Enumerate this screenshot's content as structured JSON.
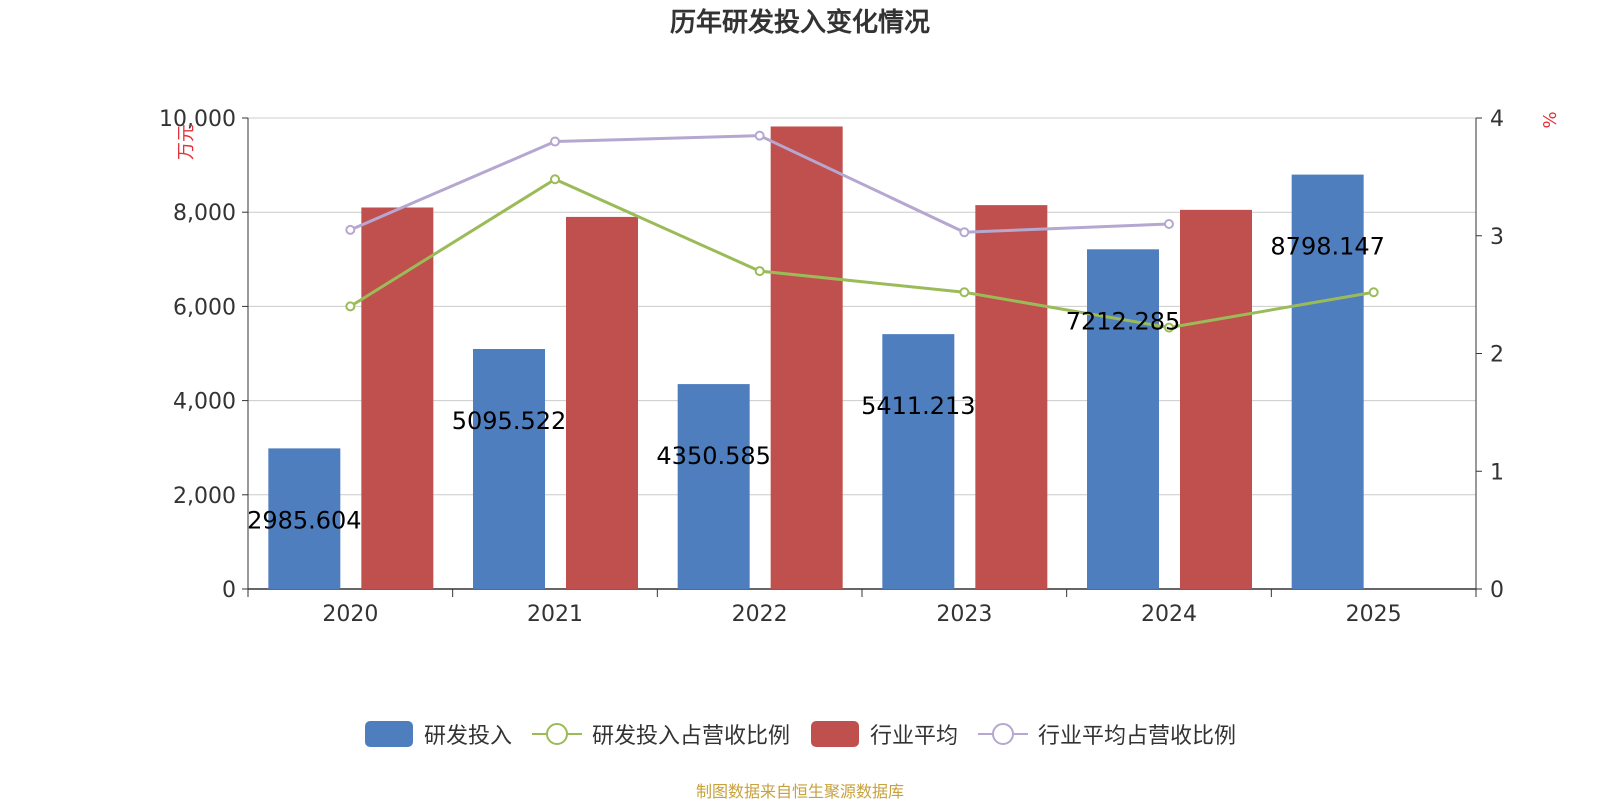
{
  "title": "历年研发投入变化情况",
  "source": "制图数据来自恒生聚源数据库",
  "colors": {
    "rd_bar": "#4f7ebe",
    "industry_bar": "#c0504d",
    "rd_ratio_line": "#9bbb59",
    "industry_ratio_line": "#b5a7d0",
    "axis_unit": "#e8303a",
    "grid": "#cccccc",
    "text": "#333333"
  },
  "chart_data": {
    "type": "bar",
    "categories": [
      "2020",
      "2021",
      "2022",
      "2023",
      "2024",
      "2025"
    ],
    "y_left": {
      "unit": "万元",
      "ylim": [
        0,
        10000
      ],
      "ticks": [
        "0",
        "2,000",
        "4,000",
        "6,000",
        "8,000",
        "10,000"
      ]
    },
    "y_right": {
      "unit": "%",
      "ylim": [
        0,
        4
      ],
      "ticks": [
        "0",
        "1",
        "2",
        "3",
        "4"
      ]
    },
    "grid": true,
    "legend_position": "bottom",
    "series": [
      {
        "name": "研发投入",
        "type": "bar",
        "axis": "left",
        "values": [
          2985.604,
          5095.522,
          4350.585,
          5411.213,
          7212.285,
          8798.147
        ],
        "labels": [
          "2985.604",
          "5095.522",
          "4350.585",
          "5411.213",
          "7212.285",
          "8798.147"
        ]
      },
      {
        "name": "研发投入占营收比例",
        "type": "line",
        "axis": "right",
        "values": [
          2.4,
          3.48,
          2.7,
          2.52,
          2.22,
          2.52
        ]
      },
      {
        "name": "行业平均",
        "type": "bar",
        "axis": "left",
        "values": [
          8100,
          7900,
          9820,
          8150,
          8050,
          null
        ]
      },
      {
        "name": "行业平均占营收比例",
        "type": "line",
        "axis": "right",
        "values": [
          3.05,
          3.8,
          3.85,
          3.03,
          3.1,
          null
        ]
      }
    ]
  }
}
